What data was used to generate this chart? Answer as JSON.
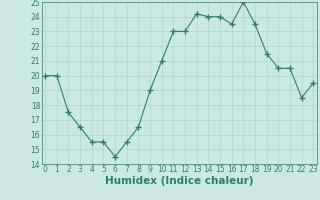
{
  "x": [
    0,
    1,
    2,
    3,
    4,
    5,
    6,
    7,
    8,
    9,
    10,
    11,
    12,
    13,
    14,
    15,
    16,
    17,
    18,
    19,
    20,
    21,
    22,
    23
  ],
  "y": [
    20,
    20,
    17.5,
    16.5,
    15.5,
    15.5,
    14.5,
    15.5,
    16.5,
    19,
    21,
    23,
    23,
    24.2,
    24,
    24,
    23.5,
    25,
    23.5,
    21.5,
    20.5,
    20.5,
    18.5,
    19.5
  ],
  "xlabel": "Humidex (Indice chaleur)",
  "ylim": [
    14,
    25
  ],
  "xlim": [
    -0.3,
    23.3
  ],
  "yticks": [
    14,
    15,
    16,
    17,
    18,
    19,
    20,
    21,
    22,
    23,
    24,
    25
  ],
  "xticks": [
    0,
    1,
    2,
    3,
    4,
    5,
    6,
    7,
    8,
    9,
    10,
    11,
    12,
    13,
    14,
    15,
    16,
    17,
    18,
    19,
    20,
    21,
    22,
    23
  ],
  "line_color": "#2e7d6e",
  "marker": "+",
  "bg_color": "#cce8e4",
  "grid_color": "#b0d4cf",
  "tick_label_fontsize": 5.5,
  "xlabel_fontsize": 7.5
}
